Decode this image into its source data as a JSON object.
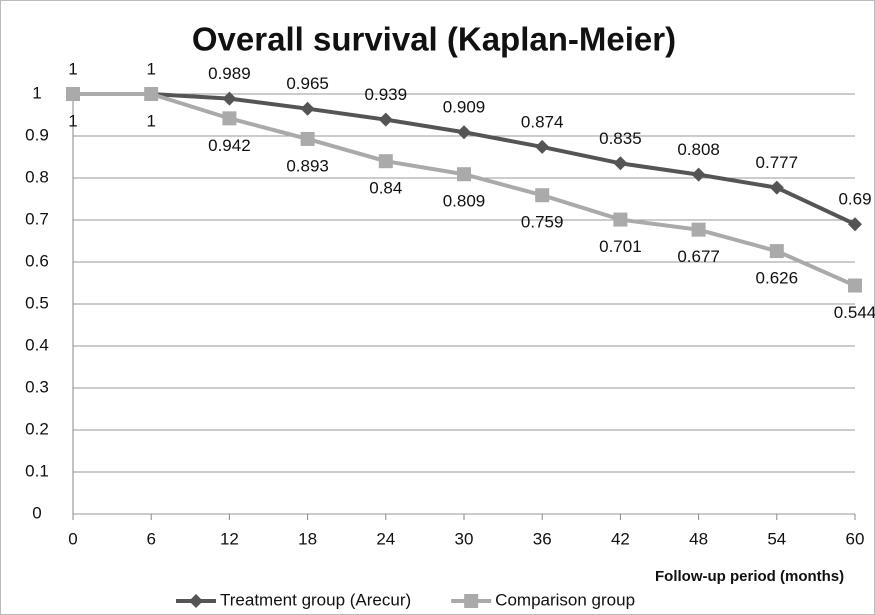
{
  "chart_data": {
    "type": "line",
    "title": "Overall survival (Kaplan-Meier)",
    "x_label": "Follow-up period (months)",
    "x": [
      0,
      6,
      12,
      18,
      24,
      30,
      36,
      42,
      48,
      54,
      60
    ],
    "xlim": [
      0,
      60
    ],
    "xticks": [
      0,
      6,
      12,
      18,
      24,
      30,
      36,
      42,
      48,
      54,
      60
    ],
    "ylim": [
      0,
      1
    ],
    "yticks": [
      0,
      0.1,
      0.2,
      0.3,
      0.4,
      0.5,
      0.6,
      0.7,
      0.8,
      0.9,
      1
    ],
    "grid": true,
    "series": [
      {
        "name": "Treatment group (Arecur)",
        "color": "#555555",
        "marker": "diamond",
        "label_side": "above",
        "values": [
          1,
          1,
          0.989,
          0.965,
          0.939,
          0.909,
          0.874,
          0.835,
          0.808,
          0.777,
          0.69
        ]
      },
      {
        "name": "Comparison group",
        "color": "#aaaaaa",
        "marker": "square",
        "label_side": "below",
        "values": [
          1,
          1,
          0.942,
          0.893,
          0.84,
          0.809,
          0.759,
          0.701,
          0.677,
          0.626,
          0.544
        ]
      }
    ]
  }
}
